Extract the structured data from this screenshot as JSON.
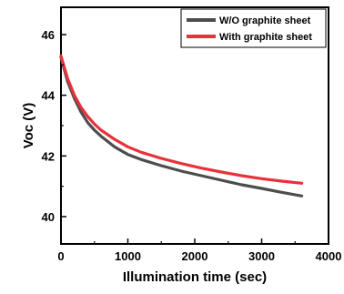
{
  "chart_data": {
    "type": "line",
    "title": "",
    "xlabel": "Illumination time  (sec)",
    "ylabel": "Voc  (V)",
    "xlim": [
      0,
      4000
    ],
    "ylim": [
      39.1,
      46.9
    ],
    "x_ticks": [
      0,
      1000,
      2000,
      3000,
      4000
    ],
    "x_tick_labels": [
      "0",
      "1000",
      "2000",
      "3000",
      "4000"
    ],
    "y_ticks": [
      40,
      42,
      44,
      46
    ],
    "y_tick_labels": [
      "40",
      "42",
      "44",
      "46"
    ],
    "grid": false,
    "legend_position": "top-right",
    "series": [
      {
        "name": "W/O graphite sheet",
        "color": "#4d4d4d",
        "x": [
          0,
          100,
          200,
          300,
          400,
          500,
          600,
          800,
          1000,
          1200,
          1500,
          1800,
          2100,
          2400,
          2700,
          3000,
          3300,
          3600
        ],
        "y": [
          45.25,
          44.45,
          43.9,
          43.45,
          43.1,
          42.85,
          42.65,
          42.3,
          42.05,
          41.88,
          41.68,
          41.5,
          41.35,
          41.2,
          41.05,
          40.93,
          40.8,
          40.68
        ]
      },
      {
        "name": "With graphite sheet",
        "color": "#e8313a",
        "x": [
          0,
          100,
          200,
          300,
          400,
          500,
          600,
          800,
          1000,
          1200,
          1500,
          1800,
          2100,
          2400,
          2700,
          3000,
          3300,
          3600
        ],
        "y": [
          45.3,
          44.55,
          44.0,
          43.6,
          43.3,
          43.05,
          42.85,
          42.55,
          42.3,
          42.12,
          41.92,
          41.75,
          41.6,
          41.47,
          41.35,
          41.25,
          41.17,
          41.1
        ]
      }
    ]
  }
}
